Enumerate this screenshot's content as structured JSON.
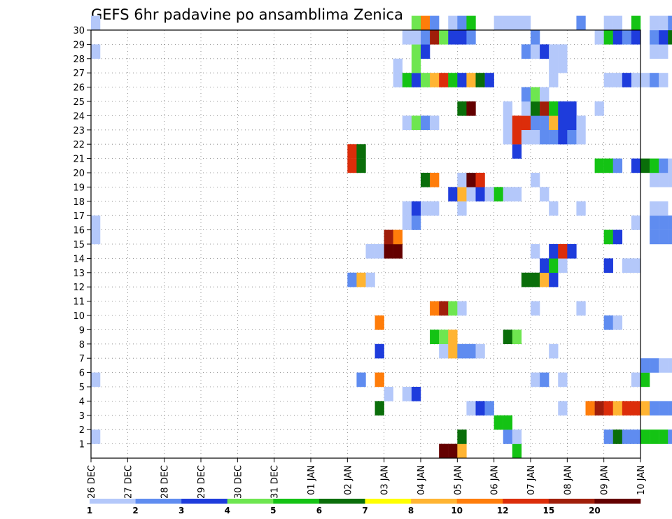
{
  "chart_data": {
    "type": "heatmap",
    "title": "GEFS 6hr padavine po ansamblima Zenica",
    "xlabel": "",
    "ylabel": "",
    "x_ticks": [
      "26 DEC",
      "27 DEC",
      "28 DEC",
      "29 DEC",
      "30 DEC",
      "31 DEC",
      "01 JAN",
      "02 JAN",
      "03 JAN",
      "04 JAN",
      "05 JAN",
      "06 JAN",
      "07 JAN",
      "08 JAN",
      "09 JAN",
      "10 JAN"
    ],
    "y_ticks": [
      1,
      2,
      3,
      4,
      5,
      6,
      7,
      8,
      9,
      10,
      11,
      12,
      13,
      14,
      15,
      16,
      17,
      18,
      19,
      20,
      21,
      22,
      23,
      24,
      25,
      26,
      27,
      28,
      29,
      30
    ],
    "x_range": [
      "26 DEC 00Z",
      "10 JAN 00Z"
    ],
    "y_range": [
      0,
      30
    ],
    "step_hours": 6,
    "grid": true,
    "legend": {
      "placement": "bottom",
      "levels": [
        1,
        2,
        3,
        4,
        5,
        6,
        7,
        8,
        10,
        12,
        15,
        20
      ],
      "colors": [
        "#b4c8fa",
        "#5f8cf0",
        "#1e3cdc",
        "#6ee650",
        "#14c314",
        "#0a6e0a",
        "#ffff00",
        "#ffb432",
        "#ff7d0a",
        "#dc2d0a",
        "#a01e0a",
        "#640000"
      ]
    },
    "cells": [
      [
        0,
        1,
        1
      ],
      [
        0,
        5,
        1
      ],
      [
        0,
        15,
        1
      ],
      [
        0,
        16,
        1
      ],
      [
        0,
        28,
        1
      ],
      [
        0,
        30,
        1
      ],
      [
        28,
        12,
        2
      ],
      [
        28,
        20,
        12
      ],
      [
        28,
        21,
        12
      ],
      [
        29,
        5,
        2
      ],
      [
        29,
        12,
        8
      ],
      [
        29,
        20,
        6
      ],
      [
        29,
        21,
        6
      ],
      [
        30,
        14,
        1
      ],
      [
        30,
        12,
        1
      ],
      [
        31,
        7,
        3
      ],
      [
        31,
        3,
        6
      ],
      [
        31,
        9,
        10
      ],
      [
        31,
        5,
        10
      ],
      [
        31,
        14,
        1
      ],
      [
        32,
        4,
        1
      ],
      [
        32,
        14,
        20
      ],
      [
        32,
        15,
        15
      ],
      [
        33,
        14,
        20
      ],
      [
        33,
        15,
        10
      ],
      [
        33,
        26,
        1
      ],
      [
        33,
        27,
        1
      ],
      [
        34,
        4,
        1
      ],
      [
        34,
        16,
        1
      ],
      [
        34,
        17,
        1
      ],
      [
        34,
        23,
        1
      ],
      [
        34,
        26,
        5
      ],
      [
        34,
        29,
        1
      ],
      [
        35,
        4,
        3
      ],
      [
        35,
        16,
        2
      ],
      [
        35,
        17,
        3
      ],
      [
        35,
        23,
        4
      ],
      [
        35,
        26,
        3
      ],
      [
        35,
        27,
        4
      ],
      [
        35,
        28,
        4
      ],
      [
        35,
        29,
        1
      ],
      [
        35,
        30,
        4
      ],
      [
        36,
        19,
        6
      ],
      [
        36,
        23,
        2
      ],
      [
        36,
        26,
        4
      ],
      [
        36,
        28,
        3
      ],
      [
        36,
        29,
        2
      ],
      [
        36,
        30,
        10
      ],
      [
        36,
        17,
        1
      ],
      [
        37,
        8,
        5
      ],
      [
        37,
        10,
        10
      ],
      [
        37,
        19,
        10
      ],
      [
        37,
        23,
        1
      ],
      [
        37,
        26,
        8
      ],
      [
        37,
        29,
        15
      ],
      [
        37,
        30,
        2
      ],
      [
        37,
        17,
        1
      ],
      [
        38,
        0,
        20
      ],
      [
        38,
        7,
        1
      ],
      [
        38,
        8,
        4
      ],
      [
        38,
        10,
        15
      ],
      [
        38,
        26,
        12
      ],
      [
        38,
        29,
        4
      ],
      [
        39,
        0,
        20
      ],
      [
        39,
        7,
        8
      ],
      [
        39,
        8,
        8
      ],
      [
        39,
        10,
        4
      ],
      [
        39,
        18,
        3
      ],
      [
        39,
        26,
        5
      ],
      [
        39,
        29,
        3
      ],
      [
        39,
        30,
        1
      ],
      [
        40,
        0,
        8
      ],
      [
        40,
        1,
        6
      ],
      [
        40,
        7,
        2
      ],
      [
        40,
        10,
        1
      ],
      [
        40,
        17,
        1
      ],
      [
        40,
        18,
        8
      ],
      [
        40,
        19,
        1
      ],
      [
        40,
        24,
        6
      ],
      [
        40,
        26,
        3
      ],
      [
        40,
        29,
        3
      ],
      [
        40,
        30,
        2
      ],
      [
        41,
        3,
        1
      ],
      [
        41,
        7,
        2
      ],
      [
        41,
        18,
        1
      ],
      [
        41,
        19,
        20
      ],
      [
        41,
        24,
        20
      ],
      [
        41,
        26,
        8
      ],
      [
        41,
        29,
        2
      ],
      [
        41,
        30,
        5
      ],
      [
        42,
        3,
        3
      ],
      [
        42,
        7,
        1
      ],
      [
        42,
        18,
        3
      ],
      [
        42,
        19,
        12
      ],
      [
        42,
        26,
        6
      ],
      [
        43,
        3,
        2
      ],
      [
        43,
        18,
        1
      ],
      [
        43,
        26,
        3
      ],
      [
        44,
        2,
        5
      ],
      [
        44,
        18,
        5
      ],
      [
        44,
        30,
        1
      ],
      [
        45,
        1,
        2
      ],
      [
        45,
        2,
        5
      ],
      [
        45,
        8,
        6
      ],
      [
        45,
        18,
        1
      ],
      [
        45,
        22,
        1
      ],
      [
        45,
        23,
        1
      ],
      [
        45,
        24,
        1
      ],
      [
        45,
        30,
        1
      ],
      [
        46,
        0,
        5
      ],
      [
        46,
        1,
        1
      ],
      [
        46,
        8,
        4
      ],
      [
        46,
        18,
        1
      ],
      [
        46,
        21,
        3
      ],
      [
        46,
        22,
        12
      ],
      [
        46,
        23,
        12
      ],
      [
        46,
        30,
        1
      ],
      [
        47,
        12,
        6
      ],
      [
        47,
        22,
        1
      ],
      [
        47,
        23,
        12
      ],
      [
        47,
        24,
        1
      ],
      [
        47,
        25,
        2
      ],
      [
        47,
        28,
        2
      ],
      [
        47,
        30,
        1
      ],
      [
        48,
        10,
        1
      ],
      [
        48,
        12,
        6
      ],
      [
        48,
        5,
        1
      ],
      [
        48,
        14,
        1
      ],
      [
        48,
        19,
        1
      ],
      [
        48,
        22,
        1
      ],
      [
        48,
        23,
        2
      ],
      [
        48,
        24,
        6
      ],
      [
        48,
        25,
        4
      ],
      [
        48,
        28,
        1
      ],
      [
        48,
        29,
        2
      ],
      [
        49,
        5,
        2
      ],
      [
        49,
        12,
        8
      ],
      [
        49,
        13,
        3
      ],
      [
        49,
        18,
        1
      ],
      [
        49,
        22,
        2
      ],
      [
        49,
        23,
        2
      ],
      [
        49,
        24,
        15
      ],
      [
        49,
        25,
        1
      ],
      [
        49,
        28,
        3
      ],
      [
        50,
        7,
        1
      ],
      [
        50,
        12,
        3
      ],
      [
        50,
        13,
        5
      ],
      [
        50,
        14,
        3
      ],
      [
        50,
        17,
        1
      ],
      [
        50,
        22,
        2
      ],
      [
        50,
        23,
        8
      ],
      [
        50,
        24,
        5
      ],
      [
        50,
        26,
        1
      ],
      [
        50,
        27,
        1
      ],
      [
        50,
        28,
        1
      ],
      [
        51,
        3,
        1
      ],
      [
        51,
        5,
        1
      ],
      [
        51,
        13,
        1
      ],
      [
        51,
        14,
        12
      ],
      [
        51,
        22,
        3
      ],
      [
        51,
        23,
        3
      ],
      [
        51,
        24,
        3
      ],
      [
        51,
        27,
        1
      ],
      [
        51,
        28,
        1
      ],
      [
        52,
        14,
        3
      ],
      [
        52,
        22,
        2
      ],
      [
        52,
        23,
        3
      ],
      [
        52,
        24,
        3
      ],
      [
        53,
        10,
        1
      ],
      [
        53,
        17,
        1
      ],
      [
        53,
        22,
        1
      ],
      [
        53,
        23,
        1
      ],
      [
        53,
        30,
        2
      ],
      [
        54,
        3,
        1
      ],
      [
        54,
        3,
        10
      ],
      [
        55,
        3,
        15
      ],
      [
        55,
        24,
        1
      ],
      [
        55,
        20,
        5
      ],
      [
        55,
        29,
        1
      ],
      [
        56,
        1,
        2
      ],
      [
        56,
        3,
        12
      ],
      [
        56,
        9,
        2
      ],
      [
        56,
        13,
        3
      ],
      [
        56,
        15,
        5
      ],
      [
        56,
        20,
        5
      ],
      [
        56,
        26,
        1
      ],
      [
        56,
        29,
        5
      ],
      [
        56,
        30,
        1
      ],
      [
        57,
        1,
        6
      ],
      [
        57,
        3,
        8
      ],
      [
        57,
        9,
        1
      ],
      [
        57,
        15,
        3
      ],
      [
        57,
        20,
        2
      ],
      [
        57,
        26,
        1
      ],
      [
        57,
        29,
        3
      ],
      [
        57,
        30,
        1
      ],
      [
        58,
        1,
        2
      ],
      [
        58,
        3,
        12
      ],
      [
        58,
        13,
        1
      ],
      [
        58,
        26,
        3
      ],
      [
        58,
        29,
        2
      ],
      [
        59,
        1,
        2
      ],
      [
        59,
        3,
        12
      ],
      [
        59,
        5,
        1
      ],
      [
        59,
        13,
        1
      ],
      [
        59,
        16,
        1
      ],
      [
        59,
        20,
        3
      ],
      [
        59,
        26,
        1
      ],
      [
        59,
        29,
        3
      ],
      [
        59,
        30,
        5
      ],
      [
        60,
        1,
        5
      ],
      [
        60,
        3,
        8
      ],
      [
        60,
        5,
        5
      ],
      [
        60,
        6,
        2
      ],
      [
        60,
        20,
        6
      ],
      [
        60,
        26,
        1
      ],
      [
        61,
        1,
        5
      ],
      [
        61,
        3,
        2
      ],
      [
        61,
        6,
        2
      ],
      [
        61,
        15,
        2
      ],
      [
        61,
        16,
        2
      ],
      [
        61,
        17,
        1
      ],
      [
        61,
        19,
        1
      ],
      [
        61,
        20,
        5
      ],
      [
        61,
        26,
        2
      ],
      [
        61,
        28,
        1
      ],
      [
        61,
        29,
        2
      ],
      [
        61,
        30,
        1
      ],
      [
        62,
        1,
        5
      ],
      [
        62,
        3,
        2
      ],
      [
        62,
        6,
        1
      ],
      [
        62,
        15,
        2
      ],
      [
        62,
        16,
        2
      ],
      [
        62,
        17,
        1
      ],
      [
        62,
        19,
        1
      ],
      [
        62,
        20,
        2
      ],
      [
        62,
        26,
        1
      ],
      [
        62,
        28,
        1
      ],
      [
        62,
        29,
        3
      ],
      [
        62,
        30,
        1
      ],
      [
        63,
        1,
        2
      ],
      [
        63,
        3,
        2
      ],
      [
        63,
        6,
        1
      ],
      [
        63,
        15,
        2
      ],
      [
        63,
        16,
        2
      ],
      [
        63,
        19,
        1
      ],
      [
        63,
        20,
        1
      ],
      [
        63,
        29,
        6
      ],
      [
        63,
        30,
        2
      ],
      [
        64,
        2,
        2
      ],
      [
        64,
        3,
        5
      ],
      [
        64,
        9,
        3
      ],
      [
        64,
        17,
        1
      ],
      [
        64,
        19,
        1
      ],
      [
        64,
        20,
        1
      ],
      [
        64,
        29,
        2
      ],
      [
        64,
        30,
        3
      ]
    ]
  }
}
